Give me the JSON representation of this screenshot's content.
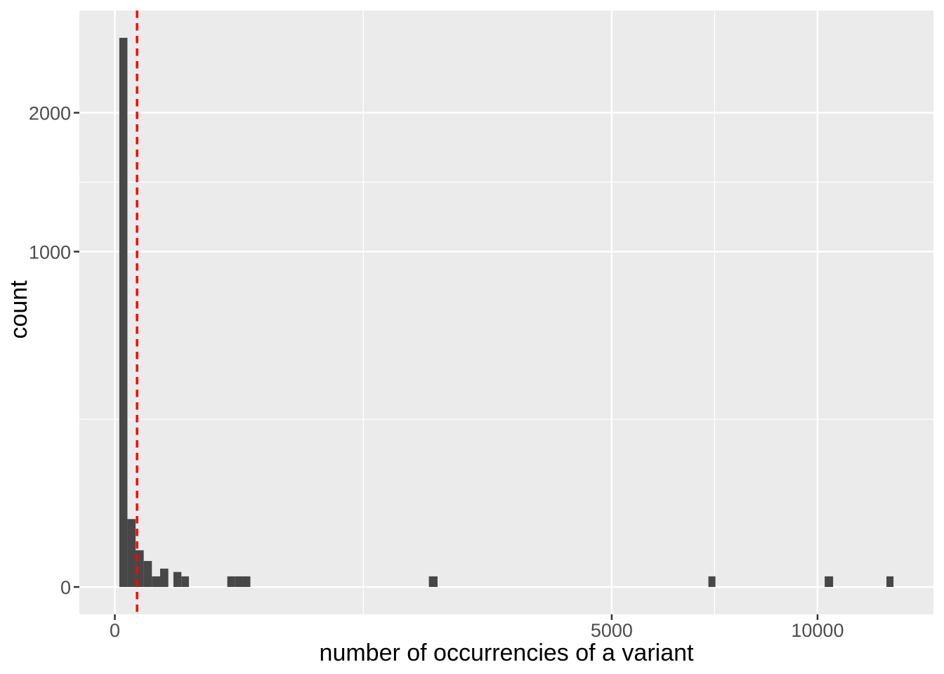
{
  "figure": {
    "background": "#FFFFFF"
  },
  "chart_data": {
    "type": "bar",
    "subtype": "histogram",
    "title": "",
    "xlabel": "number of occurrencies of a variant",
    "ylabel": "count",
    "x_scale": "sqrt",
    "y_scale": "sqrt",
    "grid": "on",
    "legend": "none",
    "x_ticks": {
      "values": [
        0,
        5000,
        10000
      ],
      "labels": [
        "0",
        "5000",
        "10000"
      ]
    },
    "y_ticks": {
      "values": [
        0,
        1000,
        2000
      ],
      "labels": [
        "0",
        "1000",
        "2000"
      ]
    },
    "x_sqrt_domain": [
      -5.05,
      116.5
    ],
    "y_sqrt_domain": [
      -2.58,
      54.36
    ],
    "bars": [
      {
        "x0": 0.4,
        "x1": 3.2,
        "count": 2682
      },
      {
        "x0": 3.2,
        "x1": 8.7,
        "count": 41
      },
      {
        "x0": 8.7,
        "x1": 16.9,
        "count": 12
      },
      {
        "x0": 16.9,
        "x1": 27.8,
        "count": 6
      },
      {
        "x0": 27.8,
        "x1": 41.5,
        "count": 1
      },
      {
        "x0": 41.5,
        "x1": 57.9,
        "count": 3
      },
      {
        "x0": 69.5,
        "x1": 89.7,
        "count": 2
      },
      {
        "x0": 89.7,
        "x1": 111.1,
        "count": 1
      },
      {
        "x0": 256,
        "x1": 291,
        "count": 1
      },
      {
        "x0": 291,
        "x1": 331,
        "count": 1
      },
      {
        "x0": 331,
        "x1": 372,
        "count": 1
      },
      {
        "x0": 1997,
        "x1": 2109,
        "count": 1
      },
      {
        "x0": 7135,
        "x1": 7305,
        "count": 1
      },
      {
        "x0": 10205,
        "x1": 10449,
        "count": 1
      },
      {
        "x0": 12058,
        "x1": 12279,
        "count": 1
      }
    ],
    "vline": {
      "x": 10,
      "color": "#FF0000",
      "style": "dashed"
    },
    "colors": {
      "panel_bg": "#EBEBEB",
      "grid_major": "#FFFFFF",
      "grid_minor": "#FFFFFF",
      "bar_fill": "#474747",
      "tick_label": "#4D4D4D",
      "axis_title": "#000000",
      "tick_mark": "#333333"
    }
  }
}
